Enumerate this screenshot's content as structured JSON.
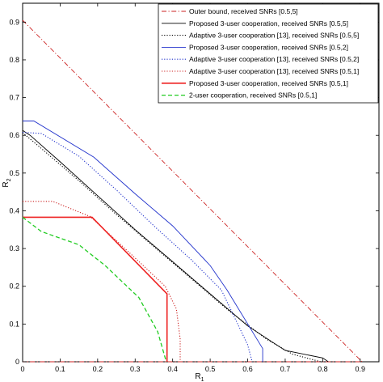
{
  "chart_data": {
    "type": "line",
    "xlabel": "R",
    "xlabel_sub": "1",
    "ylabel": "R",
    "ylabel_sub": "2",
    "xlim": [
      0,
      0.95
    ],
    "ylim": [
      0,
      0.95
    ],
    "xticks": [
      0,
      0.1,
      0.2,
      0.3,
      0.4,
      0.5,
      0.6,
      0.7,
      0.8,
      0.9
    ],
    "yticks": [
      0,
      0.1,
      0.2,
      0.3,
      0.4,
      0.5,
      0.6,
      0.7,
      0.8,
      0.9
    ],
    "xtick_labels": [
      "0",
      "0.1",
      "0.2",
      "0.3",
      "0.4",
      "0.5",
      "0.6",
      "0.7",
      "0.8",
      "0.9"
    ],
    "ytick_labels": [
      "0",
      "0.1",
      "0.2",
      "0.3",
      "0.4",
      "0.5",
      "0.6",
      "0.7",
      "0.8",
      "0.9"
    ],
    "grid": false,
    "legend_position": "top-right",
    "series": [
      {
        "name": "Outer bound, received SNRs [0.5,5]",
        "color": "#cc2222",
        "dash": "dashdot",
        "width": 0.9,
        "points": [
          [
            0,
            0.905
          ],
          [
            0.905,
            0
          ],
          [
            0.905,
            0.0
          ],
          [
            0,
            0
          ]
        ]
      },
      {
        "name": "Proposed 3-user cooperation, received SNRs [0.5,5]",
        "color": "#000000",
        "dash": "solid",
        "width": 0.9,
        "points": [
          [
            0,
            0.613
          ],
          [
            0.02,
            0.6
          ],
          [
            0.1,
            0.53
          ],
          [
            0.2,
            0.44
          ],
          [
            0.3,
            0.35
          ],
          [
            0.4,
            0.265
          ],
          [
            0.5,
            0.18
          ],
          [
            0.6,
            0.095
          ],
          [
            0.7,
            0.03
          ],
          [
            0.8,
            0.01
          ],
          [
            0.815,
            0.0
          ]
        ]
      },
      {
        "name": "Adaptive 3-user cooperation [13], received SNRs [0.5,5]",
        "color": "#000000",
        "dash": "dotted",
        "width": 1.1,
        "points": [
          [
            0,
            0.607
          ],
          [
            0.05,
            0.565
          ],
          [
            0.15,
            0.48
          ],
          [
            0.25,
            0.39
          ],
          [
            0.35,
            0.305
          ],
          [
            0.45,
            0.22
          ],
          [
            0.55,
            0.135
          ],
          [
            0.65,
            0.06
          ],
          [
            0.72,
            0.02
          ],
          [
            0.795,
            0.0
          ]
        ]
      },
      {
        "name": "Proposed 3-user cooperation, received SNRs [0.5,2]",
        "color": "#2233cc",
        "dash": "solid",
        "width": 0.9,
        "points": [
          [
            0,
            0.638
          ],
          [
            0.03,
            0.638
          ],
          [
            0.19,
            0.542
          ],
          [
            0.3,
            0.445
          ],
          [
            0.4,
            0.36
          ],
          [
            0.5,
            0.255
          ],
          [
            0.545,
            0.19
          ],
          [
            0.64,
            0.035
          ],
          [
            0.64,
            0.0
          ]
        ]
      },
      {
        "name": "Adaptive 3-user cooperation [13], received SNRs [0.5,2]",
        "color": "#2233cc",
        "dash": "dotted",
        "width": 1.1,
        "points": [
          [
            0,
            0.608
          ],
          [
            0.05,
            0.605
          ],
          [
            0.15,
            0.545
          ],
          [
            0.25,
            0.455
          ],
          [
            0.35,
            0.36
          ],
          [
            0.45,
            0.27
          ],
          [
            0.53,
            0.19
          ],
          [
            0.6,
            0.045
          ],
          [
            0.612,
            0.0
          ]
        ]
      },
      {
        "name": "Adaptive 3-user cooperation [13], received SNRs [0.5,1]",
        "color": "#cc2222",
        "dash": "dotted",
        "width": 1.1,
        "points": [
          [
            0,
            0.425
          ],
          [
            0.08,
            0.425
          ],
          [
            0.18,
            0.385
          ],
          [
            0.3,
            0.275
          ],
          [
            0.38,
            0.2
          ],
          [
            0.41,
            0.14
          ],
          [
            0.42,
            0.06
          ],
          [
            0.42,
            0.0
          ]
        ]
      },
      {
        "name": "Proposed 3-user cooperation, received SNRs [0.5,1]",
        "color": "#ee2222",
        "dash": "solid",
        "width": 1.6,
        "points": [
          [
            0,
            0.383
          ],
          [
            0.185,
            0.383
          ],
          [
            0.385,
            0.18
          ],
          [
            0.385,
            0.0
          ]
        ]
      },
      {
        "name": "2-user cooperation, received SNRs [0.5,1]",
        "color": "#22cc22",
        "dash": "dashed",
        "width": 1.3,
        "points": [
          [
            0,
            0.383
          ],
          [
            0.05,
            0.345
          ],
          [
            0.15,
            0.31
          ],
          [
            0.22,
            0.255
          ],
          [
            0.31,
            0.17
          ],
          [
            0.36,
            0.08
          ],
          [
            0.383,
            0.0
          ]
        ]
      }
    ]
  }
}
